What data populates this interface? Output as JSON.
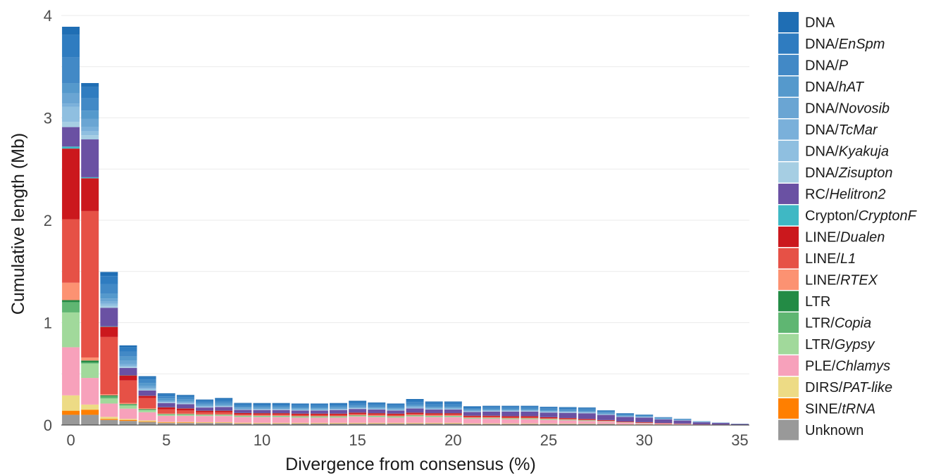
{
  "chart_data": {
    "type": "bar",
    "stacked": true,
    "xlabel": "Divergence from consensus (%)",
    "ylabel": "Cumulative length (Mb)",
    "x_ticks": [
      0,
      5,
      10,
      15,
      20,
      25,
      30,
      35
    ],
    "y_ticks": [
      0,
      1,
      2,
      3,
      4
    ],
    "xlim": [
      -0.5,
      35.5
    ],
    "ylim": [
      0,
      4
    ],
    "grid": "horizontal",
    "legend_position": "right",
    "x": [
      0,
      1,
      2,
      3,
      4,
      5,
      6,
      7,
      8,
      9,
      10,
      11,
      12,
      13,
      14,
      15,
      16,
      17,
      18,
      19,
      20,
      21,
      22,
      23,
      24,
      25,
      26,
      27,
      28,
      29,
      30,
      31,
      32,
      33,
      34,
      35
    ],
    "series": [
      {
        "name": "Unknown",
        "prefix": "Unknown",
        "italic": "",
        "color": "#999999",
        "values": [
          0.1,
          0.1,
          0.05,
          0.04,
          0.03,
          0.02,
          0.02,
          0.02,
          0.02,
          0.015,
          0.015,
          0.015,
          0.015,
          0.015,
          0.015,
          0.015,
          0.015,
          0.015,
          0.015,
          0.015,
          0.015,
          0.01,
          0.01,
          0.01,
          0.01,
          0.01,
          0.01,
          0.01,
          0.01,
          0.005,
          0.005,
          0.005,
          0.003,
          0.003,
          0.002,
          0.001
        ]
      },
      {
        "name": "SINE/tRNA",
        "prefix": "SINE/",
        "italic": "tRNA",
        "color": "#FF7F00",
        "values": [
          0.04,
          0.05,
          0.01,
          0.01,
          0.005,
          0.005,
          0.005,
          0.003,
          0.003,
          0.003,
          0.002,
          0.002,
          0.002,
          0.002,
          0.002,
          0.002,
          0.002,
          0.002,
          0.002,
          0.002,
          0.002,
          0.002,
          0.002,
          0.002,
          0.002,
          0.002,
          0.002,
          0.001,
          0.001,
          0.001,
          0.001,
          0.001,
          0.001,
          0,
          0,
          0
        ]
      },
      {
        "name": "DIRS/PAT-like",
        "prefix": "DIRS/",
        "italic": "PAT-like",
        "color": "#EDDB85",
        "values": [
          0.15,
          0.05,
          0.02,
          0.01,
          0.01,
          0.005,
          0.005,
          0.005,
          0.005,
          0.005,
          0.005,
          0.005,
          0.005,
          0.005,
          0.005,
          0.005,
          0.005,
          0.005,
          0.005,
          0.005,
          0.005,
          0.004,
          0.004,
          0.004,
          0.004,
          0.003,
          0.003,
          0.003,
          0.002,
          0.002,
          0.002,
          0.001,
          0.001,
          0,
          0,
          0
        ]
      },
      {
        "name": "PLE/Chlamys",
        "prefix": "PLE/",
        "italic": "Chlamys",
        "color": "#F7A1BB",
        "values": [
          0.47,
          0.26,
          0.13,
          0.1,
          0.08,
          0.06,
          0.06,
          0.06,
          0.06,
          0.055,
          0.055,
          0.055,
          0.05,
          0.05,
          0.05,
          0.06,
          0.055,
          0.05,
          0.06,
          0.055,
          0.055,
          0.045,
          0.045,
          0.04,
          0.04,
          0.035,
          0.03,
          0.025,
          0.02,
          0.015,
          0.01,
          0.008,
          0.005,
          0.003,
          0.002,
          0.001
        ]
      },
      {
        "name": "LTR/Gypsy",
        "prefix": "LTR/",
        "italic": "Gypsy",
        "color": "#A1D99B",
        "values": [
          0.34,
          0.14,
          0.05,
          0.03,
          0.02,
          0.01,
          0.01,
          0.008,
          0.008,
          0.008,
          0.008,
          0.008,
          0.008,
          0.008,
          0.008,
          0.008,
          0.008,
          0.008,
          0.008,
          0.008,
          0.008,
          0.006,
          0.006,
          0.006,
          0.006,
          0.006,
          0.005,
          0.004,
          0.003,
          0.002,
          0.002,
          0.001,
          0.001,
          0,
          0,
          0
        ]
      },
      {
        "name": "LTR/Copia",
        "prefix": "LTR/",
        "italic": "Copia",
        "color": "#5FB672",
        "values": [
          0.1,
          0.01,
          0.02,
          0.01,
          0.005,
          0.005,
          0.004,
          0.003,
          0.003,
          0.003,
          0.003,
          0.003,
          0.003,
          0.003,
          0.003,
          0.003,
          0.003,
          0.003,
          0.003,
          0.003,
          0.003,
          0.002,
          0.002,
          0.002,
          0.002,
          0.002,
          0.002,
          0.002,
          0.001,
          0.001,
          0.001,
          0,
          0,
          0,
          0,
          0
        ]
      },
      {
        "name": "LTR",
        "prefix": "LTR",
        "italic": "",
        "color": "#238B45",
        "values": [
          0.02,
          0.02,
          0.01,
          0.005,
          0.005,
          0.003,
          0.003,
          0.002,
          0.002,
          0.002,
          0.002,
          0.002,
          0.002,
          0.002,
          0.002,
          0.002,
          0.002,
          0.002,
          0.002,
          0.002,
          0.002,
          0.001,
          0.001,
          0.001,
          0.001,
          0.001,
          0.001,
          0.001,
          0,
          0,
          0,
          0,
          0,
          0,
          0,
          0
        ]
      },
      {
        "name": "LINE/RTEX",
        "prefix": "LINE/",
        "italic": "RTEX",
        "color": "#FC9272",
        "values": [
          0.17,
          0.03,
          0.01,
          0.01,
          0.01,
          0.005,
          0.005,
          0.004,
          0.004,
          0.004,
          0.004,
          0.004,
          0.004,
          0.004,
          0.004,
          0.004,
          0.004,
          0.004,
          0.004,
          0.004,
          0.004,
          0.003,
          0.003,
          0.003,
          0.003,
          0.003,
          0.002,
          0.002,
          0.002,
          0.001,
          0.001,
          0,
          0,
          0,
          0,
          0
        ]
      },
      {
        "name": "LINE/L1",
        "prefix": "LINE/",
        "italic": "L1",
        "color": "#E65146",
        "values": [
          0.62,
          1.43,
          0.56,
          0.22,
          0.1,
          0.04,
          0.03,
          0.02,
          0.02,
          0.01,
          0.01,
          0.01,
          0.01,
          0.01,
          0.01,
          0.01,
          0.01,
          0.01,
          0.01,
          0.01,
          0.01,
          0.008,
          0.008,
          0.008,
          0.008,
          0.006,
          0.005,
          0.004,
          0.003,
          0.002,
          0.002,
          0.001,
          0.001,
          0,
          0,
          0
        ]
      },
      {
        "name": "LINE/Dualen",
        "prefix": "LINE/",
        "italic": "Dualen",
        "color": "#CB181D",
        "values": [
          0.69,
          0.32,
          0.1,
          0.05,
          0.02,
          0.02,
          0.02,
          0.015,
          0.015,
          0.012,
          0.012,
          0.012,
          0.012,
          0.012,
          0.012,
          0.012,
          0.012,
          0.012,
          0.012,
          0.012,
          0.012,
          0.01,
          0.01,
          0.01,
          0.01,
          0.008,
          0.008,
          0.007,
          0.006,
          0.005,
          0.004,
          0.003,
          0.002,
          0.001,
          0.001,
          0
        ]
      },
      {
        "name": "Crypton/CryptonF",
        "prefix": "Crypton/",
        "italic": "CryptonF",
        "color": "#3FB8C4",
        "values": [
          0.02,
          0.01,
          0.005,
          0.003,
          0.002,
          0.002,
          0.002,
          0.001,
          0.001,
          0.001,
          0.001,
          0.001,
          0.001,
          0.001,
          0.001,
          0.001,
          0.001,
          0.001,
          0.001,
          0.001,
          0.001,
          0.001,
          0.001,
          0.001,
          0.001,
          0.001,
          0.001,
          0.001,
          0.001,
          0,
          0,
          0,
          0,
          0,
          0,
          0
        ]
      },
      {
        "name": "RC/Helitron2",
        "prefix": "RC/",
        "italic": "Helitron2",
        "color": "#6A51A3",
        "values": [
          0.19,
          0.37,
          0.18,
          0.07,
          0.05,
          0.04,
          0.04,
          0.03,
          0.035,
          0.03,
          0.03,
          0.03,
          0.03,
          0.03,
          0.035,
          0.035,
          0.035,
          0.03,
          0.04,
          0.035,
          0.035,
          0.035,
          0.04,
          0.045,
          0.045,
          0.045,
          0.05,
          0.055,
          0.05,
          0.045,
          0.045,
          0.035,
          0.03,
          0.02,
          0.015,
          0.008
        ]
      },
      {
        "name": "DNA/Zisupton",
        "prefix": "DNA/",
        "italic": "Zisupton",
        "color": "#A6CEE3",
        "values": [
          0.05,
          0.04,
          0.02,
          0.01,
          0.005,
          0.005,
          0.005,
          0.004,
          0.004,
          0.003,
          0.003,
          0.003,
          0.003,
          0.003,
          0.003,
          0.003,
          0.003,
          0.003,
          0.003,
          0.003,
          0.003,
          0.003,
          0.003,
          0.003,
          0.003,
          0.003,
          0.003,
          0.003,
          0.002,
          0.002,
          0.002,
          0.001,
          0.001,
          0,
          0,
          0
        ]
      },
      {
        "name": "DNA/Kyakuja",
        "prefix": "DNA/",
        "italic": "Kyakuja",
        "color": "#8FBFE0",
        "values": [
          0.15,
          0.04,
          0.02,
          0.01,
          0.01,
          0.005,
          0.005,
          0.004,
          0.004,
          0.003,
          0.003,
          0.003,
          0.003,
          0.003,
          0.003,
          0.003,
          0.003,
          0.003,
          0.004,
          0.003,
          0.003,
          0.003,
          0.003,
          0.003,
          0.003,
          0.003,
          0.003,
          0.003,
          0.002,
          0.002,
          0.002,
          0.001,
          0.001,
          0.001,
          0,
          0
        ]
      },
      {
        "name": "DNA/TcMar",
        "prefix": "DNA/",
        "italic": "TcMar",
        "color": "#7AB0DA",
        "values": [
          0.03,
          0.04,
          0.02,
          0.02,
          0.01,
          0.005,
          0.005,
          0.005,
          0.005,
          0.004,
          0.004,
          0.004,
          0.004,
          0.004,
          0.004,
          0.004,
          0.004,
          0.004,
          0.005,
          0.004,
          0.004,
          0.004,
          0.004,
          0.004,
          0.004,
          0.004,
          0.004,
          0.004,
          0.003,
          0.003,
          0.002,
          0.002,
          0.001,
          0.001,
          0,
          0
        ]
      },
      {
        "name": "DNA/Novosib",
        "prefix": "DNA/",
        "italic": "Novosib",
        "color": "#6AA5D3",
        "values": [
          0.1,
          0.08,
          0.03,
          0.03,
          0.02,
          0.01,
          0.01,
          0.01,
          0.01,
          0.008,
          0.008,
          0.008,
          0.008,
          0.008,
          0.008,
          0.008,
          0.008,
          0.008,
          0.01,
          0.008,
          0.008,
          0.006,
          0.006,
          0.006,
          0.006,
          0.006,
          0.006,
          0.006,
          0.005,
          0.004,
          0.003,
          0.002,
          0.002,
          0.001,
          0,
          0
        ]
      },
      {
        "name": "DNA/hAT",
        "prefix": "DNA/",
        "italic": "hAT",
        "color": "#5599CC",
        "values": [
          0.1,
          0.08,
          0.05,
          0.04,
          0.03,
          0.02,
          0.02,
          0.015,
          0.015,
          0.012,
          0.012,
          0.012,
          0.012,
          0.012,
          0.012,
          0.012,
          0.012,
          0.012,
          0.015,
          0.012,
          0.012,
          0.01,
          0.01,
          0.01,
          0.01,
          0.01,
          0.01,
          0.01,
          0.008,
          0.006,
          0.005,
          0.004,
          0.003,
          0.002,
          0.001,
          0
        ]
      },
      {
        "name": "DNA/P",
        "prefix": "DNA/",
        "italic": "P",
        "color": "#4289C6",
        "values": [
          0.25,
          0.12,
          0.09,
          0.05,
          0.03,
          0.02,
          0.02,
          0.015,
          0.02,
          0.015,
          0.015,
          0.015,
          0.015,
          0.015,
          0.015,
          0.02,
          0.015,
          0.015,
          0.025,
          0.02,
          0.02,
          0.012,
          0.012,
          0.012,
          0.012,
          0.012,
          0.012,
          0.012,
          0.01,
          0.008,
          0.006,
          0.005,
          0.004,
          0.002,
          0.001,
          0.001
        ]
      },
      {
        "name": "DNA/EnSpm",
        "prefix": "DNA/",
        "italic": "EnSpm",
        "color": "#2F7CC0",
        "values": [
          0.22,
          0.11,
          0.08,
          0.04,
          0.02,
          0.02,
          0.015,
          0.015,
          0.02,
          0.015,
          0.015,
          0.015,
          0.015,
          0.015,
          0.015,
          0.02,
          0.015,
          0.015,
          0.02,
          0.02,
          0.02,
          0.01,
          0.01,
          0.01,
          0.01,
          0.01,
          0.01,
          0.01,
          0.008,
          0.006,
          0.005,
          0.004,
          0.003,
          0.002,
          0.001,
          0.001
        ]
      },
      {
        "name": "DNA",
        "prefix": "DNA",
        "italic": "",
        "color": "#1F6EB4",
        "values": [
          0.08,
          0.04,
          0.04,
          0.02,
          0.015,
          0.01,
          0.01,
          0.01,
          0.01,
          0.008,
          0.008,
          0.008,
          0.008,
          0.008,
          0.008,
          0.01,
          0.008,
          0.008,
          0.01,
          0.008,
          0.008,
          0.008,
          0.008,
          0.008,
          0.008,
          0.008,
          0.008,
          0.008,
          0.006,
          0.005,
          0.004,
          0.003,
          0.002,
          0.001,
          0.001,
          0
        ]
      }
    ]
  }
}
